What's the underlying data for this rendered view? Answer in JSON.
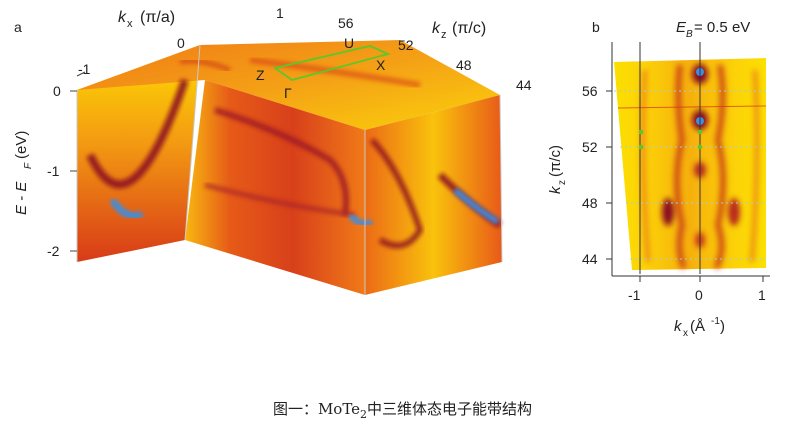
{
  "panel_a": {
    "label": "a",
    "kx_axis": {
      "symbol": "k",
      "subscript": "x",
      "unit": "(π/a)",
      "ticks": [
        "-1",
        "0",
        "1"
      ]
    },
    "kz_axis": {
      "symbol": "k",
      "subscript": "z",
      "unit": "(π/c)",
      "ticks": [
        "56",
        "52",
        "48",
        "44"
      ]
    },
    "energy_axis": {
      "text": "E - E",
      "subscript": "F",
      "unit": "(eV)",
      "ticks": [
        "0",
        "-1",
        "-2"
      ]
    },
    "bz_points": [
      "U",
      "X",
      "Z",
      "Γ"
    ]
  },
  "panel_b": {
    "label": "b",
    "title": {
      "symbol": "E",
      "subscript": "B",
      "value": " = 0.5 eV"
    },
    "y_axis": {
      "symbol": "k",
      "subscript": "z",
      "unit": "(π/c)",
      "ticks": [
        "56",
        "52",
        "48",
        "44"
      ]
    },
    "x_axis": {
      "symbol": "k",
      "subscript": "x",
      "unit": "(Å",
      "exponent": "-1",
      "close": ")",
      "ticks": [
        "-1",
        "0",
        "1"
      ]
    }
  },
  "caption": {
    "prefix": "图一：MoTe",
    "subscript": "2",
    "suffix": "中三维体态电子能带结构"
  },
  "colors": {
    "low": "#ffe600",
    "mid": "#e8501e",
    "high": "#8a1020",
    "peak": "#3c8ee0"
  }
}
